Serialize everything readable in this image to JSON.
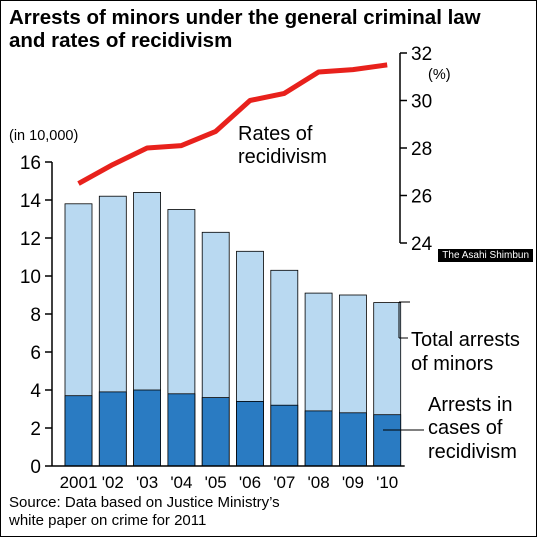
{
  "title_line1": "Arrests of minors under the general criminal law",
  "title_line2": "and rates of recidivism",
  "credit": "The Asahi Shimbun",
  "left_unit": "(in 10,000)",
  "right_unit": "(%)",
  "labels": {
    "rate_line1": "Rates of",
    "rate_line2": "recidivism",
    "total_line1": "Total arrests",
    "total_line2": "of minors",
    "recid_line1": "Arrests in",
    "recid_line2": "cases of",
    "recid_line3": "recidivism"
  },
  "source_line1": "Source: Data based on Justice Ministry’s",
  "source_line2": "white paper on crime for 2011",
  "colors": {
    "total": "#b9d9f1",
    "recid": "#2a7bc2",
    "line": "#e8211c"
  },
  "chart_data": {
    "type": "bar",
    "categories": [
      "2001",
      "'02",
      "'03",
      "'04",
      "'05",
      "'06",
      "'07",
      "'08",
      "'09",
      "'10"
    ],
    "series": [
      {
        "name": "Total arrests of minors",
        "values": [
          13.8,
          14.2,
          14.4,
          13.5,
          12.3,
          11.3,
          10.3,
          9.1,
          9.0,
          8.6
        ]
      },
      {
        "name": "Arrests in cases of recidivism",
        "values": [
          3.7,
          3.9,
          4.0,
          3.8,
          3.6,
          3.4,
          3.2,
          2.9,
          2.8,
          2.7
        ]
      },
      {
        "name": "Rates of recidivism",
        "type": "line",
        "axis": "right",
        "values": [
          26.5,
          27.3,
          28.0,
          28.1,
          28.7,
          30.0,
          30.3,
          31.2,
          31.3,
          31.5
        ]
      }
    ],
    "left_axis": {
      "ticks": [
        "0",
        "2",
        "4",
        "6",
        "8",
        "10",
        "12",
        "14",
        "16"
      ],
      "ylim": [
        0,
        16
      ]
    },
    "right_axis": {
      "ticks": [
        "24",
        "26",
        "28",
        "30",
        "32"
      ],
      "ylim": [
        24,
        32
      ]
    }
  }
}
